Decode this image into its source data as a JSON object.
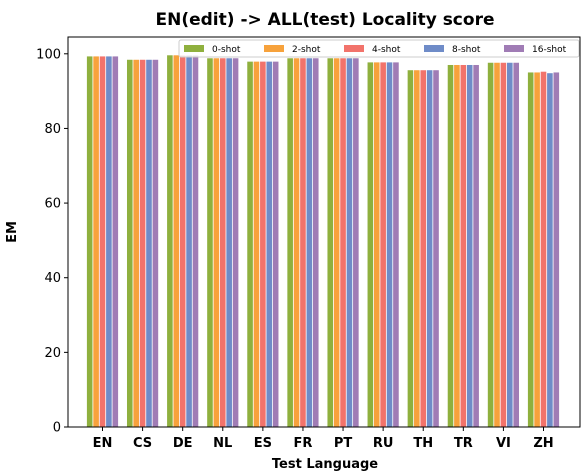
{
  "chart_data": {
    "type": "bar",
    "title": "EN(edit) -> ALL(test) Locality score",
    "xlabel": "Test Language",
    "ylabel": "EM",
    "categories": [
      "EN",
      "CS",
      "DE",
      "NL",
      "ES",
      "FR",
      "PT",
      "RU",
      "TH",
      "TR",
      "VI",
      "ZH"
    ],
    "ylim": [
      0,
      104.5
    ],
    "yticks": [
      0,
      20,
      40,
      60,
      80,
      100
    ],
    "grid": false,
    "legend": {
      "placement": "top-right",
      "columns": 5
    },
    "series": [
      {
        "name": "0-shot",
        "color": "#8fb03e",
        "values": [
          99.3,
          98.4,
          99.6,
          98.8,
          97.9,
          98.8,
          98.8,
          97.7,
          95.6,
          97.0,
          97.6,
          95.0
        ]
      },
      {
        "name": "2-shot",
        "color": "#f7a23c",
        "values": [
          99.3,
          98.4,
          99.6,
          98.8,
          97.9,
          98.8,
          98.8,
          97.7,
          95.6,
          97.0,
          97.6,
          95.0
        ]
      },
      {
        "name": "4-shot",
        "color": "#f2736b",
        "values": [
          99.3,
          98.4,
          99.6,
          98.8,
          97.9,
          98.8,
          98.8,
          97.7,
          95.6,
          97.0,
          97.6,
          95.2
        ]
      },
      {
        "name": "8-shot",
        "color": "#6f8cc8",
        "values": [
          99.3,
          98.4,
          99.6,
          98.8,
          97.9,
          98.8,
          98.8,
          97.7,
          95.6,
          97.0,
          97.6,
          94.8
        ]
      },
      {
        "name": "16-shot",
        "color": "#a07cb5",
        "values": [
          99.3,
          98.4,
          99.6,
          98.8,
          97.9,
          98.8,
          98.8,
          97.7,
          95.6,
          97.0,
          97.6,
          95.0
        ]
      }
    ]
  }
}
